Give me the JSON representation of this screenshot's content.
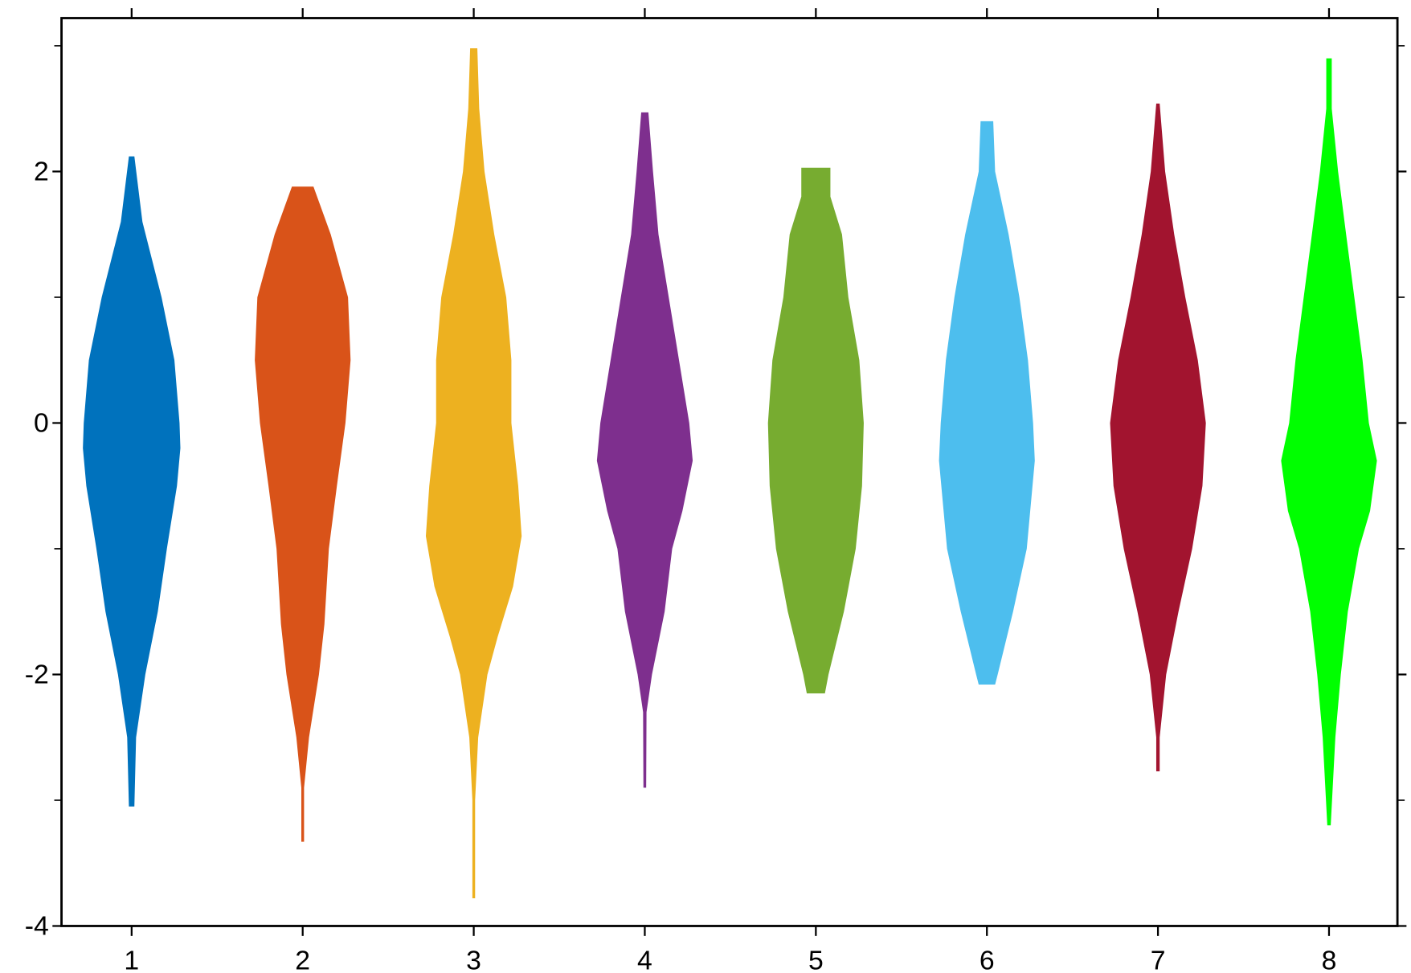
{
  "chart_data": {
    "type": "violin",
    "categories": [
      "1",
      "2",
      "3",
      "4",
      "5",
      "6",
      "7",
      "8"
    ],
    "xlim": [
      0.59,
      8.4
    ],
    "ylim": [
      -4,
      3.22
    ],
    "xticks": [
      1,
      2,
      3,
      4,
      5,
      6,
      7,
      8
    ],
    "yticks": [
      -4,
      -2,
      0,
      2
    ],
    "yminor": [
      -3,
      -1,
      1,
      3
    ],
    "violins": [
      {
        "color": "#0072bd",
        "y": [
          2.12,
          1.6,
          1,
          0.5,
          0,
          -0.2,
          -0.5,
          -1,
          -1.5,
          -2,
          -2.5,
          -3.05
        ],
        "width": [
          0.016,
          0.063,
          0.175,
          0.25,
          0.28,
          0.285,
          0.265,
          0.206,
          0.153,
          0.08,
          0.026,
          0.016
        ]
      },
      {
        "color": "#d95319",
        "y": [
          1.88,
          1.5,
          1,
          0.5,
          0,
          -0.5,
          -1,
          -1.6,
          -2,
          -2.5,
          -2.9,
          -3.33
        ],
        "width": [
          0.063,
          0.164,
          0.265,
          0.28,
          0.25,
          0.2,
          0.153,
          0.127,
          0.095,
          0.037,
          0.008,
          0.008
        ]
      },
      {
        "color": "#edb120",
        "y": [
          2.98,
          2.5,
          2,
          1.5,
          1,
          0.5,
          0,
          -0.5,
          -0.9,
          -1.3,
          -1.7,
          -2,
          -2.5,
          -3,
          -3.78
        ],
        "width": [
          0.021,
          0.032,
          0.063,
          0.12,
          0.19,
          0.22,
          0.22,
          0.26,
          0.28,
          0.23,
          0.14,
          0.08,
          0.026,
          0.008,
          0.008
        ]
      },
      {
        "color": "#7e2f8e",
        "y": [
          2.47,
          2,
          1.5,
          1,
          0.5,
          0,
          -0.3,
          -0.7,
          -1,
          -1.5,
          -2,
          -2.3,
          -2.9
        ],
        "width": [
          0.021,
          0.048,
          0.08,
          0.14,
          0.2,
          0.26,
          0.28,
          0.22,
          0.16,
          0.116,
          0.042,
          0.01,
          0.008
        ]
      },
      {
        "color": "#77ac30",
        "y": [
          2.03,
          1.8,
          1.5,
          1,
          0.5,
          0,
          -0.5,
          -1,
          -1.5,
          -2,
          -2.15
        ],
        "width": [
          0.085,
          0.085,
          0.153,
          0.19,
          0.254,
          0.28,
          0.27,
          0.233,
          0.164,
          0.074,
          0.053
        ]
      },
      {
        "color": "#4dbeee",
        "y": [
          2.4,
          2,
          1.5,
          1,
          0.5,
          0,
          -0.3,
          -1,
          -1.5,
          -2,
          -2.08
        ],
        "width": [
          0.037,
          0.048,
          0.127,
          0.19,
          0.24,
          0.27,
          0.28,
          0.233,
          0.153,
          0.063,
          0.048
        ]
      },
      {
        "color": "#a2142f",
        "y": [
          2.54,
          2,
          1.5,
          1,
          0.5,
          0,
          -0.5,
          -1,
          -1.5,
          -2,
          -2.5,
          -2.77
        ],
        "width": [
          0.01,
          0.042,
          0.095,
          0.16,
          0.233,
          0.28,
          0.26,
          0.2,
          0.12,
          0.048,
          0.01,
          0.01
        ]
      },
      {
        "color": "#00ff00",
        "y": [
          2.9,
          2.5,
          2,
          1.5,
          1,
          0.5,
          0,
          -0.3,
          -0.7,
          -1,
          -1.5,
          -2,
          -2.5,
          -3.2
        ],
        "width": [
          0.016,
          0.016,
          0.053,
          0.1,
          0.148,
          0.196,
          0.233,
          0.28,
          0.24,
          0.175,
          0.11,
          0.069,
          0.037,
          0.01
        ]
      }
    ]
  }
}
